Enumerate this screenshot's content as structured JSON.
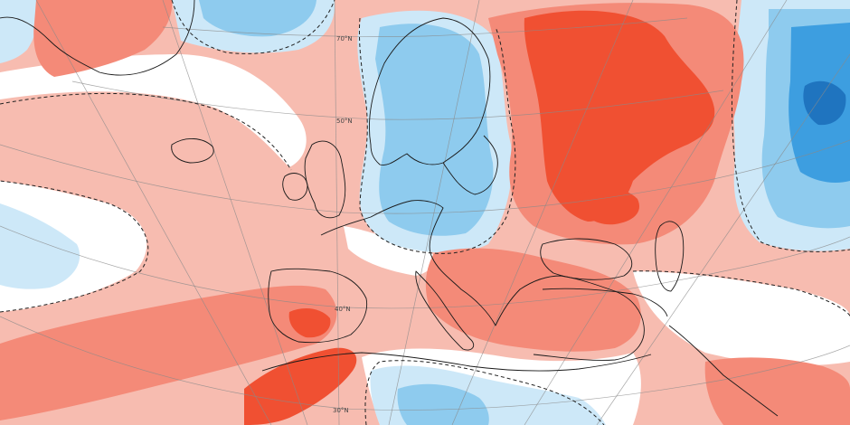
{
  "map": {
    "type": "temperature-anomaly",
    "region": "Europe",
    "latitude_labels": [
      "70°N",
      "50°N",
      "40°N",
      "30°N"
    ]
  },
  "colors": {
    "anom_warm_strong": "#f05032",
    "anom_warm": "#f48a78",
    "anom_warm_light": "#f7bcb0",
    "anom_neutral": "#ffffff",
    "anom_cool_light": "#cde8f8",
    "anom_cool": "#8ecbee",
    "anom_cool_strong": "#3d9ee0",
    "anom_cool_deep": "#1f74bf"
  }
}
